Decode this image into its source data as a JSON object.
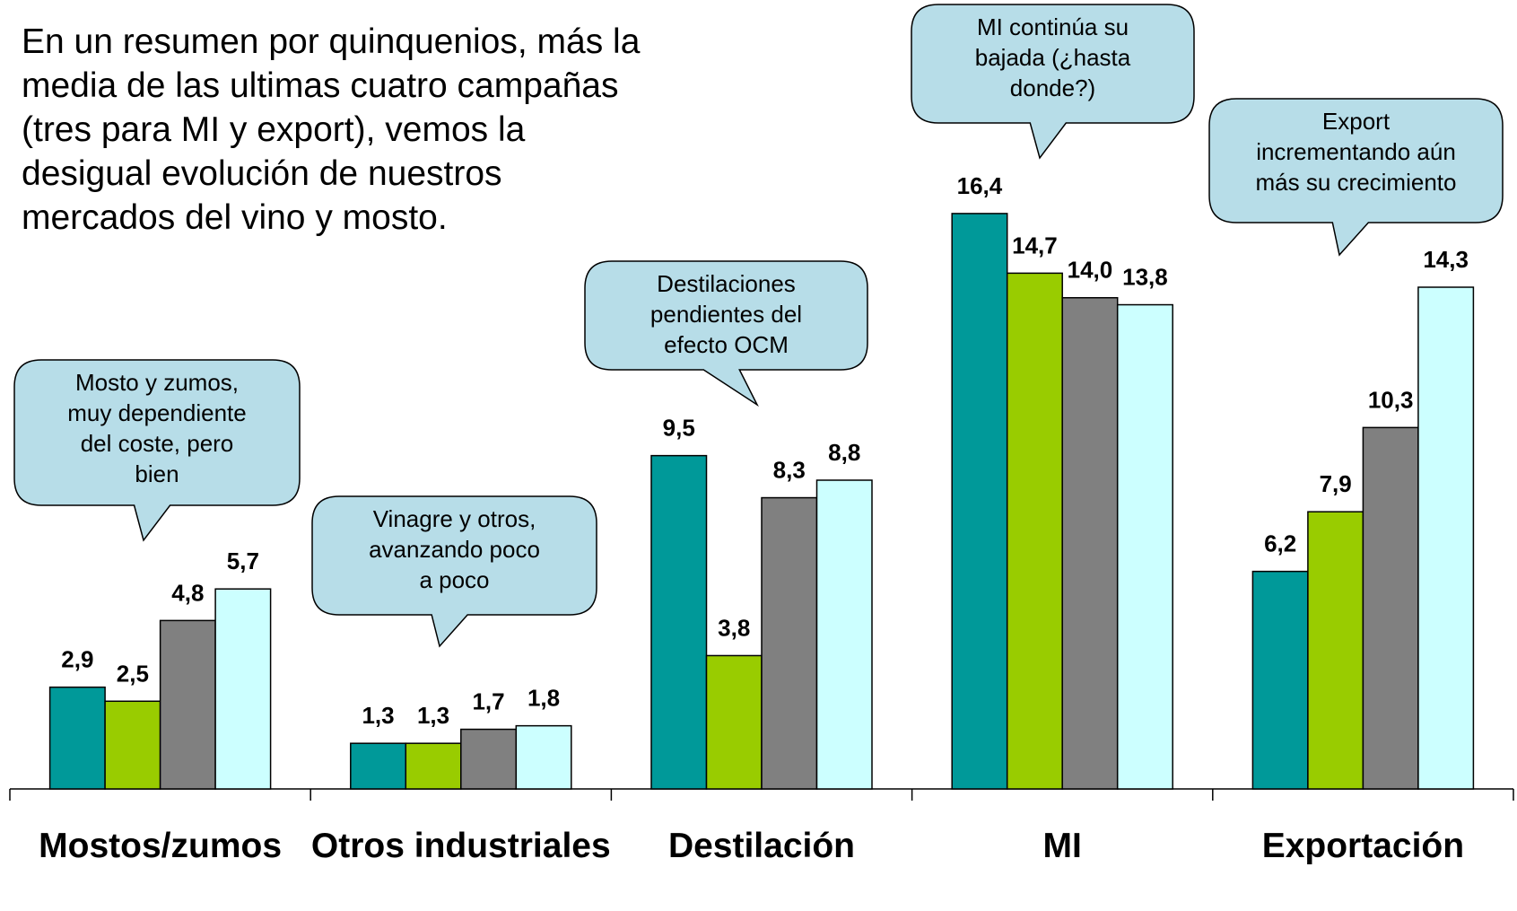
{
  "chart_data": {
    "type": "bar",
    "title": "En un resumen por quinquenios, más la\nmedia de las ultimas cuatro campañas\n(tres para MI y export), vemos la\ndesigual evolución de nuestros\nmercados del vino y mosto.",
    "categories": [
      "Mostos/zumos",
      "Otros industriales",
      "Destilación",
      "MI",
      "Exportación"
    ],
    "series": [
      {
        "color": "#009999",
        "values": [
          2.9,
          1.3,
          9.5,
          16.4,
          6.2
        ],
        "value_labels": [
          "2,9",
          "1,3",
          "9,5",
          "16,4",
          "6,2"
        ]
      },
      {
        "color": "#99cc00",
        "values": [
          2.5,
          1.3,
          3.8,
          14.7,
          7.9
        ],
        "value_labels": [
          "2,5",
          "1,3",
          "3,8",
          "14,7",
          "7,9"
        ]
      },
      {
        "color": "#808080",
        "values": [
          4.8,
          1.7,
          8.3,
          14.0,
          10.3
        ],
        "value_labels": [
          "4,8",
          "1,7",
          "8,3",
          "14,0",
          "10,3"
        ]
      },
      {
        "color": "#ccffff",
        "values": [
          5.7,
          1.8,
          8.8,
          13.8,
          14.3
        ],
        "value_labels": [
          "5,7",
          "1,8",
          "8,8",
          "13,8",
          "14,3"
        ]
      }
    ],
    "annotations": [
      "Mosto y zumos,\nmuy dependiente\ndel coste, pero\nbien",
      "Vinagre y otros,\navanzando poco\na poco",
      "Destilaciones\npendientes del\nefecto OCM",
      "MI continúa su\nbajada (¿hasta\ndonde?)",
      "Export\nincrementando aún\nmás su crecimiento"
    ],
    "ylim": [
      0,
      22
    ]
  }
}
